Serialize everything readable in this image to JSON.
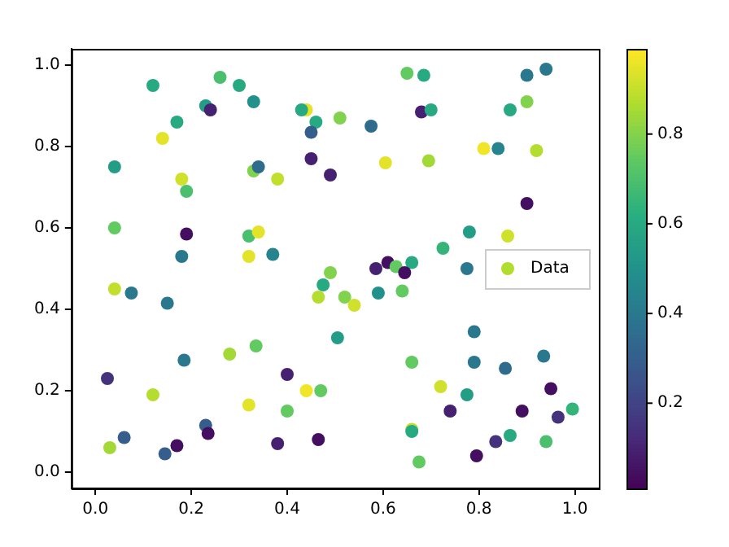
{
  "chart_data": {
    "type": "scatter",
    "x": [
      0.12,
      0.26,
      0.3,
      0.33,
      0.23,
      0.24,
      0.17,
      0.14,
      0.04,
      0.18,
      0.19,
      0.04,
      0.19,
      0.18,
      0.32,
      0.37,
      0.32,
      0.34,
      0.33,
      0.34,
      0.38,
      0.45,
      0.44,
      0.43,
      0.46,
      0.45,
      0.49,
      0.65,
      0.685,
      0.9,
      0.94,
      0.51,
      0.575,
      0.68,
      0.7,
      0.865,
      0.9,
      0.605,
      0.695,
      0.81,
      0.84,
      0.92,
      0.9,
      0.78,
      0.725,
      0.86,
      0.49,
      0.585,
      0.61,
      0.627,
      0.66,
      0.645,
      0.775,
      0.04,
      0.075,
      0.15,
      0.475,
      0.465,
      0.185,
      0.28,
      0.335,
      0.025,
      0.4,
      0.12,
      0.47,
      0.44,
      0.32,
      0.4,
      0.23,
      0.235,
      0.06,
      0.17,
      0.145,
      0.03,
      0.38,
      0.465,
      0.52,
      0.54,
      0.59,
      0.64,
      0.505,
      0.79,
      0.66,
      0.79,
      0.855,
      0.935,
      0.72,
      0.775,
      0.95,
      0.74,
      0.89,
      0.965,
      0.995,
      0.66,
      0.66,
      0.835,
      0.865,
      0.94,
      0.795,
      0.675
    ],
    "series": [
      {
        "name": "Data",
        "values": [
          0.95,
          0.97,
          0.95,
          0.91,
          0.9,
          0.89,
          0.86,
          0.82,
          0.75,
          0.72,
          0.69,
          0.6,
          0.585,
          0.53,
          0.53,
          0.535,
          0.58,
          0.59,
          0.74,
          0.75,
          0.72,
          0.77,
          0.89,
          0.89,
          0.86,
          0.835,
          0.73,
          0.98,
          0.975,
          0.975,
          0.99,
          0.87,
          0.85,
          0.885,
          0.89,
          0.89,
          0.91,
          0.76,
          0.765,
          0.795,
          0.795,
          0.79,
          0.66,
          0.59,
          0.55,
          0.58,
          0.49,
          0.5,
          0.515,
          0.505,
          0.515,
          0.49,
          0.5,
          0.45,
          0.44,
          0.415,
          0.46,
          0.43,
          0.275,
          0.29,
          0.31,
          0.23,
          0.24,
          0.19,
          0.2,
          0.2,
          0.165,
          0.15,
          0.115,
          0.095,
          0.085,
          0.065,
          0.045,
          0.06,
          0.07,
          0.08,
          0.43,
          0.41,
          0.44,
          0.445,
          0.33,
          0.345,
          0.27,
          0.27,
          0.255,
          0.285,
          0.21,
          0.19,
          0.205,
          0.15,
          0.15,
          0.135,
          0.155,
          0.105,
          0.1,
          0.075,
          0.09,
          0.075,
          0.04,
          0.025
        ],
        "cvalues": [
          0.6,
          0.7,
          0.6,
          0.5,
          0.55,
          0.1,
          0.6,
          0.95,
          0.55,
          0.92,
          0.7,
          0.75,
          0.05,
          0.4,
          0.95,
          0.45,
          0.7,
          0.95,
          0.8,
          0.35,
          0.9,
          0.1,
          0.95,
          0.6,
          0.6,
          0.3,
          0.1,
          0.75,
          0.6,
          0.4,
          0.4,
          0.8,
          0.35,
          0.1,
          0.6,
          0.6,
          0.8,
          0.95,
          0.85,
          0.97,
          0.45,
          0.88,
          0.05,
          0.55,
          0.65,
          0.92,
          0.8,
          0.1,
          0.05,
          0.75,
          0.6,
          0.05,
          0.4,
          0.9,
          0.4,
          0.4,
          0.6,
          0.88,
          0.4,
          0.85,
          0.75,
          0.15,
          0.1,
          0.88,
          0.75,
          0.97,
          0.95,
          0.75,
          0.3,
          0.05,
          0.3,
          0.05,
          0.3,
          0.85,
          0.1,
          0.05,
          0.8,
          0.92,
          0.5,
          0.75,
          0.55,
          0.4,
          0.75,
          0.4,
          0.35,
          0.4,
          0.92,
          0.55,
          0.05,
          0.1,
          0.05,
          0.15,
          0.65,
          0.9,
          0.6,
          0.15,
          0.6,
          0.7,
          0.05,
          0.75
        ]
      }
    ],
    "xlim": [
      -0.05,
      1.05
    ],
    "ylim": [
      -0.04,
      1.04
    ],
    "xticks": [
      {
        "value": 0,
        "label": "0.0"
      },
      0.2,
      0.4,
      0.6,
      0.8,
      {
        "value": 1,
        "label": "1.0"
      }
    ],
    "yticks": [
      {
        "value": 0,
        "label": "0.0"
      },
      0.2,
      0.4,
      0.6,
      0.8,
      {
        "value": 1,
        "label": "1.0"
      }
    ],
    "clim": [
      0.01,
      0.99
    ],
    "cticks": [
      0.2,
      0.4,
      0.6,
      0.8
    ],
    "marker": "circle",
    "grid": false,
    "legend": "right"
  }
}
